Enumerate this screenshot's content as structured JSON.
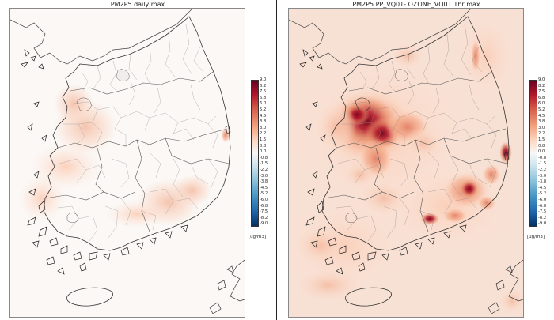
{
  "panels": [
    {
      "id": "left",
      "title": "PM2P5.daily max",
      "intensity": "low"
    },
    {
      "id": "right",
      "title": "PM2P5.PP_VQ01-.OZONE_VQ01.1hr max",
      "intensity": "high"
    }
  ],
  "colorbar": {
    "labels": [
      "9.0",
      "8.2",
      "7.5",
      "6.8",
      "6.0",
      "5.2",
      "4.5",
      "3.8",
      "3.0",
      "2.2",
      "1.5",
      "0.8",
      "0.0",
      "-0.8",
      "-1.5",
      "-2.2",
      "-3.0",
      "-3.8",
      "-4.5",
      "-5.2",
      "-6.0",
      "-6.8",
      "-7.5",
      "-8.2",
      "-9.0"
    ],
    "unit": "[ug/m3]",
    "colors_top_to_bottom": [
      "#67001f",
      "#b2182b",
      "#d6604d",
      "#f4a582",
      "#fddbc7",
      "#f7f7f7",
      "#d1e5f0",
      "#92c5de",
      "#4393c3",
      "#2166ac",
      "#053061"
    ]
  }
}
